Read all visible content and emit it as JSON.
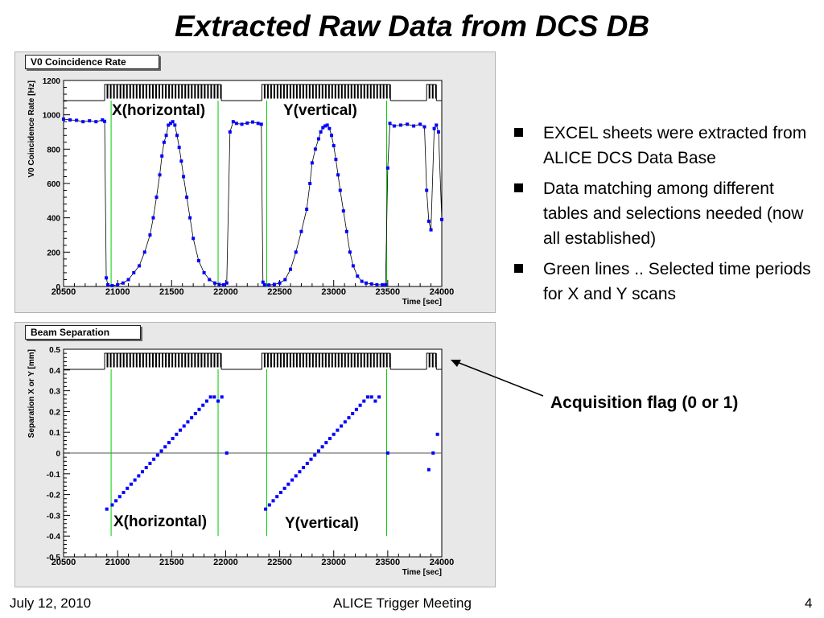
{
  "slide": {
    "title": "Extracted Raw Data from DCS DB",
    "bullets": [
      "EXCEL sheets were extracted from ALICE DCS Data Base",
      "Data matching among different tables and selections needed (now all established)",
      "Green lines .. Selected time periods for X and Y scans"
    ],
    "annotation": "Acquisition flag (0 or 1)",
    "footer_left": "July 12, 2010",
    "footer_center": "ALICE Trigger Meeting",
    "footer_right": "4"
  },
  "chart_data": [
    {
      "type": "scatter",
      "title": "V0 Coincidence Rate",
      "xlabel": "Time [sec]",
      "ylabel": "V0 Coincidence Rate [Hz]",
      "xlim": [
        20500,
        24000
      ],
      "ylim": [
        0,
        1200
      ],
      "xticks": [
        20500,
        21000,
        21500,
        22000,
        22500,
        23000,
        23500,
        24000
      ],
      "yticks": [
        0,
        200,
        400,
        600,
        800,
        1000,
        1200
      ],
      "marker_color": "#0000ff",
      "selection_line_color": "#00cc00",
      "selection_lines_x": [
        20940,
        21930,
        22380,
        23490
      ],
      "annotations": [
        "X(horizontal)",
        "Y(vertical)"
      ],
      "acquisition_flag": {
        "high_intervals": [
          [
            20880,
            21960
          ],
          [
            22335,
            23525
          ],
          [
            23860,
            23950
          ]
        ]
      },
      "series": [
        {
          "x": [
            20500,
            20560,
            20620,
            20680,
            20740,
            20800,
            20860,
            20880,
            20895,
            20910,
            20950,
            21000,
            21050,
            21100,
            21150,
            21200,
            21250,
            21300,
            21330,
            21360,
            21390,
            21410,
            21430,
            21450,
            21470,
            21490,
            21510,
            21530,
            21550,
            21570,
            21590,
            21610,
            21640,
            21670,
            21700,
            21750,
            21800,
            21850,
            21900,
            21940,
            21980,
            22010,
            22040,
            22070,
            22100,
            22150,
            22200,
            22250,
            22300,
            22330,
            22345,
            22360,
            22400,
            22450,
            22500,
            22550,
            22600,
            22650,
            22700,
            22750,
            22780,
            22800,
            22830,
            22860,
            22880,
            22900,
            22920,
            22940,
            22960,
            22980,
            23000,
            23020,
            23040,
            23060,
            23090,
            23120,
            23150,
            23180,
            23220,
            23260,
            23300,
            23350,
            23400,
            23450,
            23480,
            23500,
            23520,
            23560,
            23620,
            23680,
            23740,
            23800,
            23840,
            23860,
            23880,
            23900,
            23930,
            23950,
            23970,
            24000
          ],
          "y": [
            975,
            970,
            968,
            960,
            965,
            960,
            970,
            962,
            50,
            10,
            5,
            10,
            20,
            40,
            80,
            120,
            200,
            300,
            400,
            520,
            650,
            760,
            840,
            880,
            940,
            950,
            960,
            940,
            880,
            810,
            730,
            640,
            520,
            400,
            280,
            150,
            80,
            40,
            20,
            12,
            10,
            20,
            900,
            960,
            950,
            945,
            952,
            958,
            950,
            945,
            25,
            10,
            8,
            12,
            20,
            40,
            100,
            200,
            320,
            450,
            600,
            720,
            800,
            860,
            900,
            925,
            935,
            940,
            920,
            880,
            820,
            740,
            650,
            560,
            440,
            320,
            200,
            120,
            60,
            30,
            20,
            15,
            10,
            10,
            10,
            690,
            950,
            935,
            940,
            945,
            935,
            945,
            930,
            560,
            380,
            330,
            920,
            940,
            900,
            390
          ]
        }
      ]
    },
    {
      "type": "scatter",
      "title": "Beam Separation",
      "xlabel": "Time [sec]",
      "ylabel": "Separation X or Y [mm]",
      "xlim": [
        20500,
        24000
      ],
      "ylim": [
        -0.5,
        0.5
      ],
      "xticks": [
        20500,
        21000,
        21500,
        22000,
        22500,
        23000,
        23500,
        24000
      ],
      "yticks": [
        -0.5,
        -0.4,
        -0.3,
        -0.2,
        -0.1,
        0,
        0.1,
        0.2,
        0.3,
        0.4,
        0.5
      ],
      "marker_color": "#0000ff",
      "selection_line_color": "#00cc00",
      "selection_lines_x": [
        20940,
        21930,
        22380,
        23490
      ],
      "annotations": [
        "X(horizontal)",
        "Y(vertical)"
      ],
      "acquisition_flag": {
        "high_intervals": [
          [
            20880,
            21960
          ],
          [
            22335,
            23525
          ],
          [
            23860,
            23950
          ]
        ]
      },
      "series": [
        {
          "x": [
            20900,
            20950,
            20985,
            21020,
            21055,
            21090,
            21125,
            21160,
            21195,
            21230,
            21265,
            21300,
            21335,
            21370,
            21405,
            21440,
            21475,
            21510,
            21545,
            21580,
            21615,
            21650,
            21685,
            21720,
            21755,
            21790,
            21825,
            21860,
            21895,
            21930,
            21965,
            22010,
            22370,
            22405,
            22440,
            22475,
            22510,
            22545,
            22580,
            22615,
            22650,
            22685,
            22720,
            22755,
            22790,
            22825,
            22860,
            22895,
            22930,
            22965,
            23000,
            23035,
            23070,
            23105,
            23140,
            23175,
            23210,
            23245,
            23280,
            23315,
            23350,
            23385,
            23420,
            23500,
            23880,
            23920,
            23960
          ],
          "y": [
            -0.27,
            -0.25,
            -0.23,
            -0.21,
            -0.19,
            -0.17,
            -0.15,
            -0.13,
            -0.11,
            -0.09,
            -0.07,
            -0.05,
            -0.03,
            -0.01,
            0.01,
            0.03,
            0.05,
            0.07,
            0.09,
            0.11,
            0.13,
            0.15,
            0.17,
            0.19,
            0.21,
            0.23,
            0.25,
            0.27,
            0.27,
            0.25,
            0.27,
            0.0,
            -0.27,
            -0.25,
            -0.23,
            -0.21,
            -0.19,
            -0.17,
            -0.15,
            -0.13,
            -0.11,
            -0.09,
            -0.07,
            -0.05,
            -0.03,
            -0.01,
            0.01,
            0.03,
            0.05,
            0.07,
            0.09,
            0.11,
            0.13,
            0.15,
            0.17,
            0.19,
            0.21,
            0.23,
            0.25,
            0.27,
            0.27,
            0.25,
            0.27,
            0.0,
            -0.08,
            0.0,
            0.09
          ]
        }
      ]
    }
  ]
}
